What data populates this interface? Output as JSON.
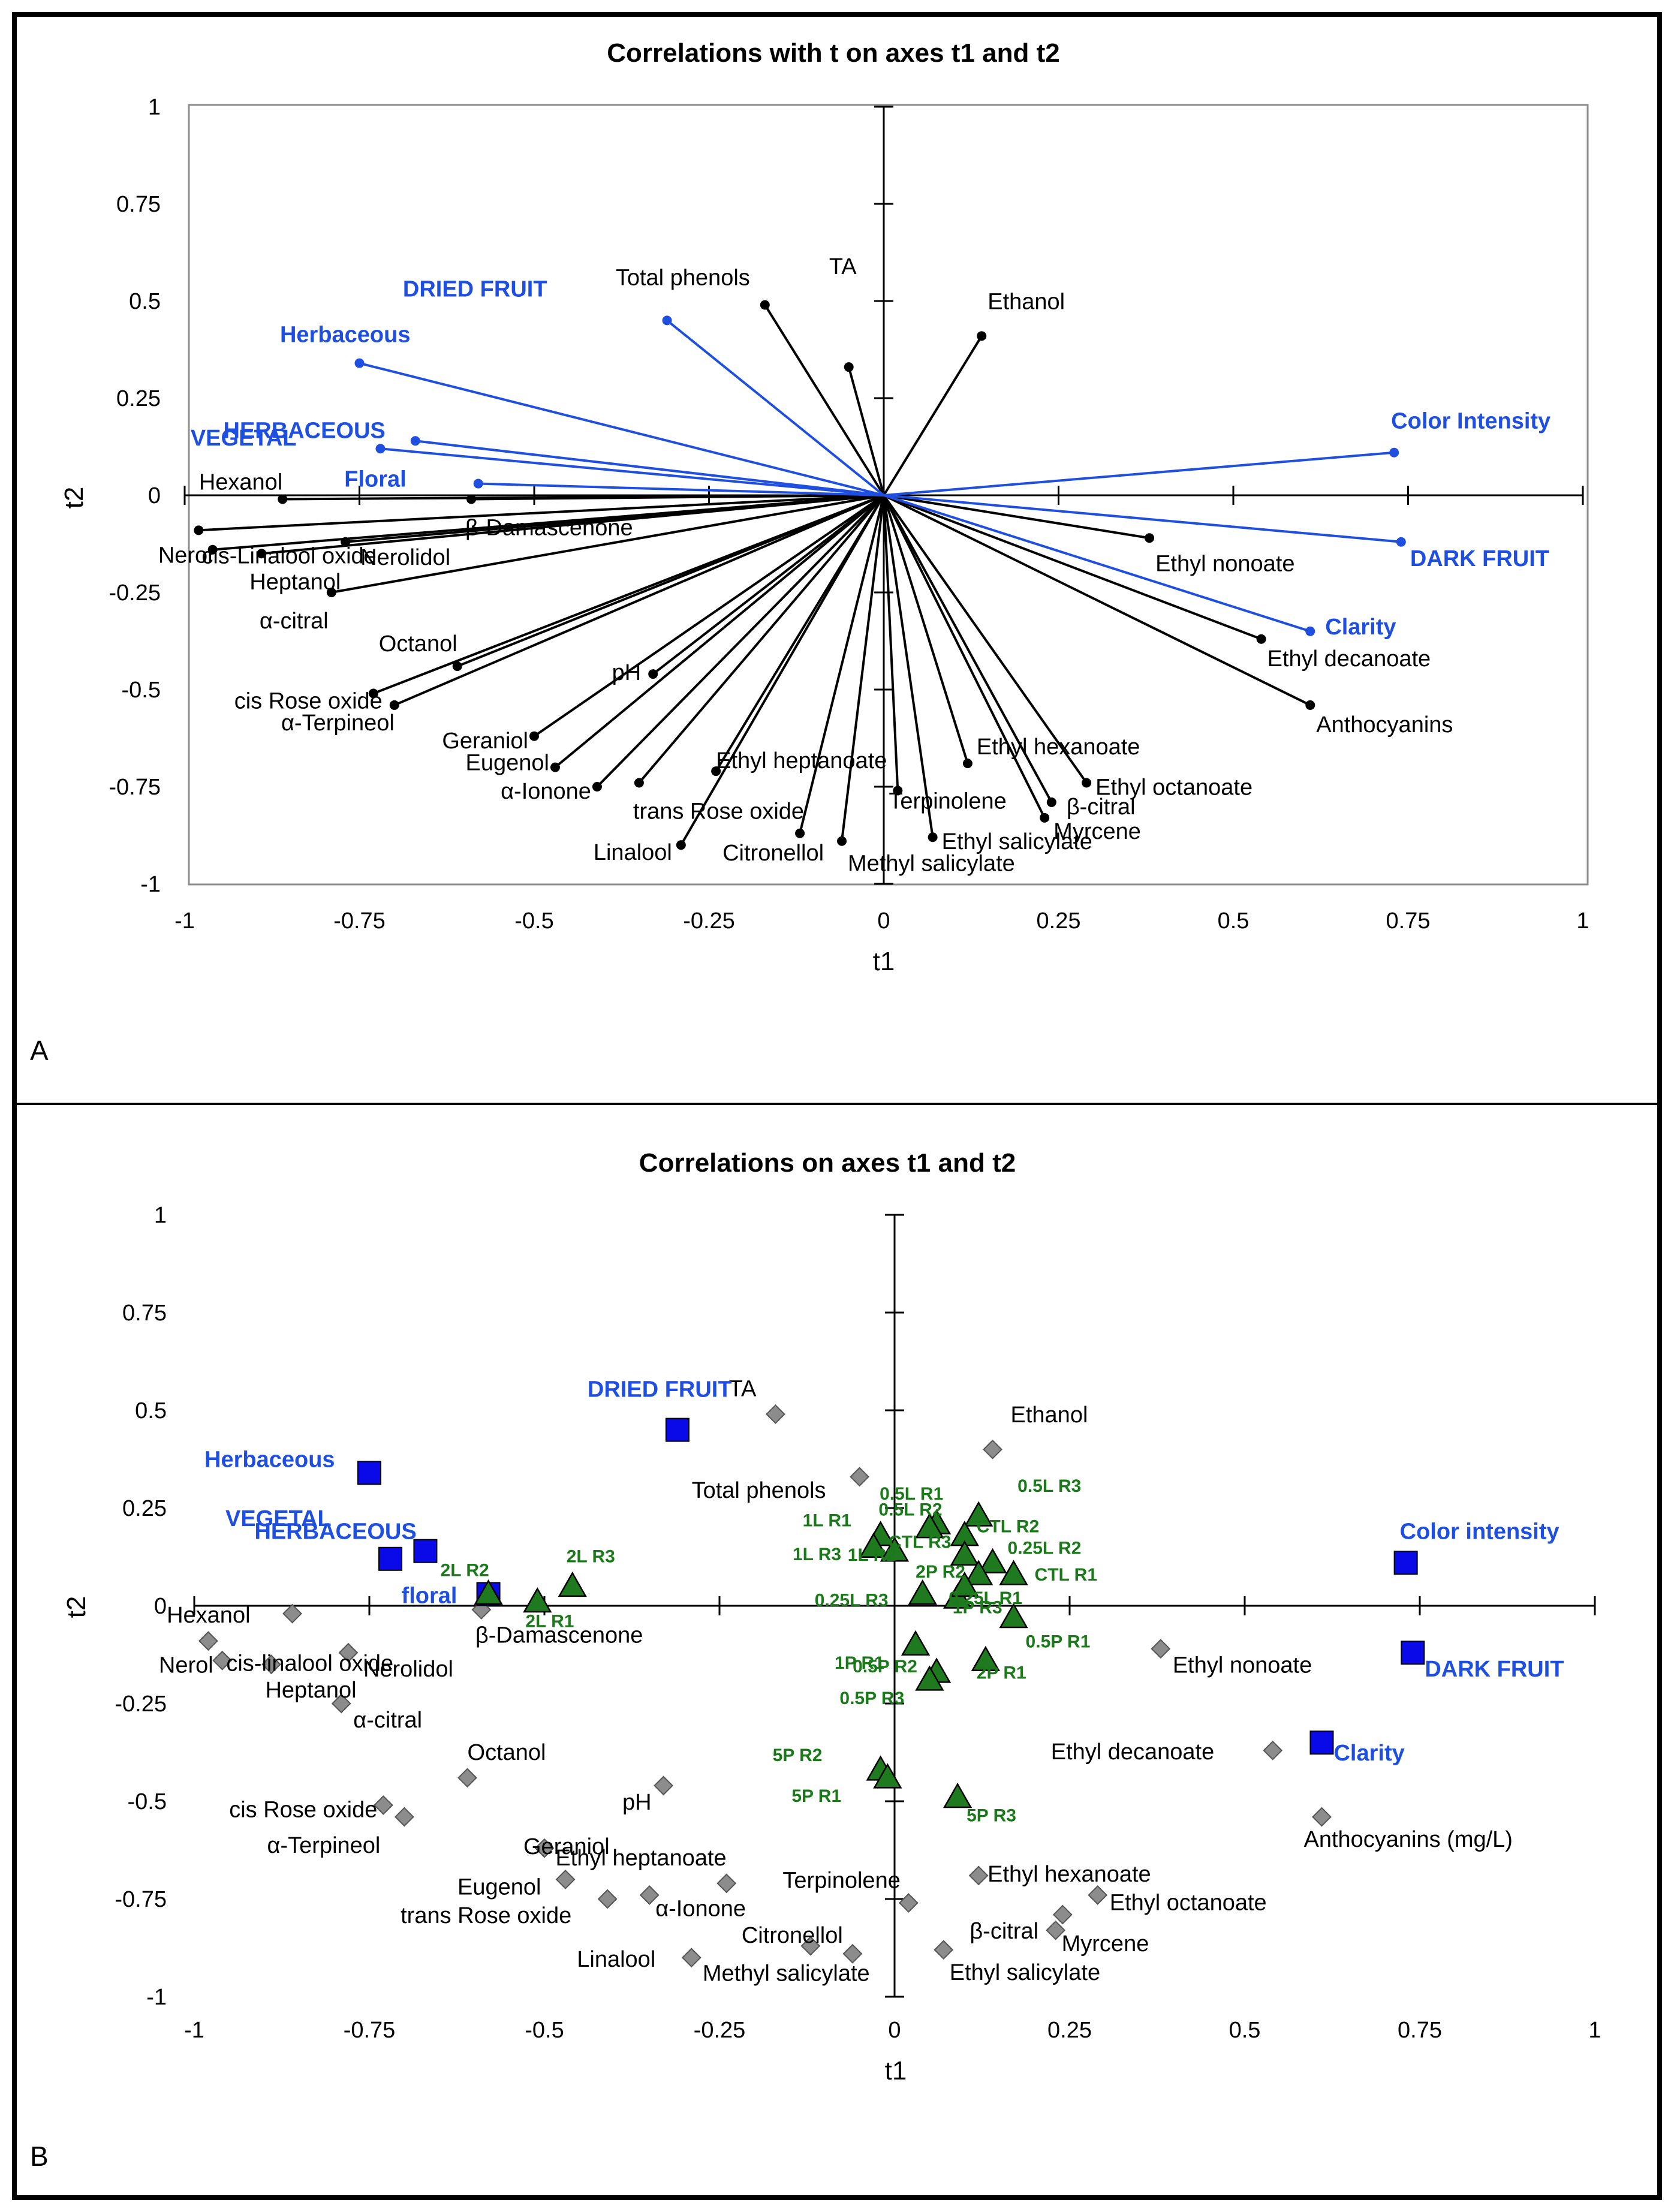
{
  "panels": {
    "A": {
      "letter": "A",
      "xlabel": "t1",
      "ylabel": "t2"
    },
    "B": {
      "letter": "B",
      "xlabel": "t1",
      "ylabel": "t2"
    }
  },
  "colors": {
    "black": "#000000",
    "blue": "#1f4fe0",
    "blue_marker": "#0a0ae8",
    "green_text": "#1a7a1a",
    "green_marker": "#1f7a1f",
    "gray_marker": "#8c8c8c"
  },
  "chart_data": [
    {
      "type": "scatter",
      "title": "Correlations with t on axes t1 and t2",
      "xlabel": "t1",
      "ylabel": "t2",
      "xlim": [
        -1,
        1
      ],
      "ylim": [
        -1,
        1
      ],
      "xticks": [
        "-1",
        "-0.75",
        "-0.5",
        "-0.25",
        "0",
        "0.25",
        "0.5",
        "0.75",
        "1"
      ],
      "yticks": [
        "1",
        "0.75",
        "0.5",
        "0.25",
        "0",
        "-0.25",
        "-0.5",
        "-0.75",
        "-1"
      ],
      "grid": false,
      "series": [
        {
          "marker": "vector",
          "color": "black",
          "points": [
            {
              "label": "Total phenols",
              "x": -0.17,
              "y": 0.49
            },
            {
              "label": "TA",
              "x": -0.05,
              "y": 0.33
            },
            {
              "label": "Ethanol",
              "x": 0.14,
              "y": 0.41
            },
            {
              "label": "Hexanol",
              "x": -0.86,
              "y": -0.01
            },
            {
              "label": "β-Damascenone",
              "x": -0.59,
              "y": -0.01
            },
            {
              "label": "cis-Linalool oxide",
              "x": -0.98,
              "y": -0.09
            },
            {
              "label": "Nerol",
              "x": -0.96,
              "y": -0.14
            },
            {
              "label": "Nerolidol",
              "x": -0.77,
              "y": -0.12
            },
            {
              "label": "Heptanol",
              "x": -0.89,
              "y": -0.15
            },
            {
              "label": "α-citral",
              "x": -0.79,
              "y": -0.25
            },
            {
              "label": "Octanol",
              "x": -0.61,
              "y": -0.44
            },
            {
              "label": "cis Rose oxide",
              "x": -0.73,
              "y": -0.51
            },
            {
              "label": "α-Terpineol",
              "x": -0.7,
              "y": -0.54
            },
            {
              "label": "pH",
              "x": -0.33,
              "y": -0.46
            },
            {
              "label": "Geraniol",
              "x": -0.5,
              "y": -0.62
            },
            {
              "label": "Eugenol",
              "x": -0.47,
              "y": -0.7
            },
            {
              "label": "α-Ionone",
              "x": -0.41,
              "y": -0.75
            },
            {
              "label": "trans Rose oxide",
              "x": -0.35,
              "y": -0.74
            },
            {
              "label": "Ethyl heptanoate",
              "x": -0.24,
              "y": -0.71
            },
            {
              "label": "Linalool",
              "x": -0.29,
              "y": -0.9
            },
            {
              "label": "Citronellol",
              "x": -0.12,
              "y": -0.87
            },
            {
              "label": "Methyl salicylate",
              "x": -0.06,
              "y": -0.89
            },
            {
              "label": "Terpinolene",
              "x": 0.02,
              "y": -0.76
            },
            {
              "label": "Ethyl salicylate",
              "x": 0.07,
              "y": -0.88
            },
            {
              "label": "Ethyl hexanoate",
              "x": 0.12,
              "y": -0.69
            },
            {
              "label": "β-citral",
              "x": 0.24,
              "y": -0.79
            },
            {
              "label": "Myrcene",
              "x": 0.23,
              "y": -0.83
            },
            {
              "label": "Ethyl octanoate",
              "x": 0.29,
              "y": -0.74
            },
            {
              "label": "Ethyl nonoate",
              "x": 0.38,
              "y": -0.11
            },
            {
              "label": "Ethyl decanoate",
              "x": 0.54,
              "y": -0.37
            },
            {
              "label": "Anthocyanins",
              "x": 0.61,
              "y": -0.54
            }
          ]
        },
        {
          "marker": "vector",
          "color": "blue",
          "points": [
            {
              "label": "DRIED FRUIT",
              "x": -0.31,
              "y": 0.45
            },
            {
              "label": "Herbaceous",
              "x": -0.75,
              "y": 0.34
            },
            {
              "label": "HERBACEOUS",
              "x": -0.67,
              "y": 0.14
            },
            {
              "label": "VEGETAL",
              "x": -0.72,
              "y": 0.12
            },
            {
              "label": "Floral",
              "x": -0.58,
              "y": 0.03
            },
            {
              "label": "Color Intensity",
              "x": 0.73,
              "y": 0.11
            },
            {
              "label": "DARK FRUIT",
              "x": 0.74,
              "y": -0.12
            },
            {
              "label": "Clarity",
              "x": 0.61,
              "y": -0.35
            }
          ]
        }
      ]
    },
    {
      "type": "scatter",
      "title": "Correlations on axes t1 and t2",
      "xlabel": "t1",
      "ylabel": "t2",
      "xlim": [
        -1,
        1
      ],
      "ylim": [
        -1,
        1
      ],
      "xticks": [
        "-1",
        "-0.75",
        "-0.5",
        "-0.25",
        "0",
        "0.25",
        "0.5",
        "0.75",
        "1"
      ],
      "yticks": [
        "1",
        "0.75",
        "0.5",
        "0.25",
        "0",
        "-0.25",
        "-0.5",
        "-0.75",
        "-1"
      ],
      "grid": false,
      "series": [
        {
          "marker": "diamond",
          "color": "gray",
          "points": [
            {
              "label": "TA",
              "x": -0.17,
              "y": 0.49
            },
            {
              "label": "Total phenols",
              "x": -0.05,
              "y": 0.33
            },
            {
              "label": "Ethanol",
              "x": 0.14,
              "y": 0.4
            },
            {
              "label": "Hexanol",
              "x": -0.86,
              "y": -0.02
            },
            {
              "label": "β-Damascenone",
              "x": -0.59,
              "y": -0.01
            },
            {
              "label": "cis-linalool oxide",
              "x": -0.98,
              "y": -0.09
            },
            {
              "label": "Nerolidol",
              "x": -0.78,
              "y": -0.12
            },
            {
              "label": "Nerol",
              "x": -0.96,
              "y": -0.14
            },
            {
              "label": "Heptanol",
              "x": -0.89,
              "y": -0.15
            },
            {
              "label": "α-citral",
              "x": -0.79,
              "y": -0.25
            },
            {
              "label": "Octanol",
              "x": -0.61,
              "y": -0.44
            },
            {
              "label": "pH",
              "x": -0.33,
              "y": -0.46
            },
            {
              "label": "cis Rose oxide",
              "x": -0.73,
              "y": -0.51
            },
            {
              "label": "α-Terpineol",
              "x": -0.7,
              "y": -0.54
            },
            {
              "label": "Geraniol",
              "x": -0.5,
              "y": -0.62
            },
            {
              "label": "Eugenol",
              "x": -0.47,
              "y": -0.7
            },
            {
              "label": "trans Rose oxide",
              "x": -0.41,
              "y": -0.75
            },
            {
              "label": "α-Ionone",
              "x": -0.35,
              "y": -0.74
            },
            {
              "label": "Ethyl heptanoate",
              "x": -0.24,
              "y": -0.71
            },
            {
              "label": "Terpinolene",
              "x": 0.02,
              "y": -0.76
            },
            {
              "label": "Citronellol",
              "x": -0.12,
              "y": -0.87
            },
            {
              "label": "Linalool",
              "x": -0.29,
              "y": -0.9
            },
            {
              "label": "Methyl salicylate",
              "x": -0.06,
              "y": -0.89
            },
            {
              "label": "Ethyl salicylate",
              "x": 0.07,
              "y": -0.88
            },
            {
              "label": "Ethyl hexanoate",
              "x": 0.12,
              "y": -0.69
            },
            {
              "label": "β-citral",
              "x": 0.24,
              "y": -0.79
            },
            {
              "label": "Myrcene",
              "x": 0.23,
              "y": -0.83
            },
            {
              "label": "Ethyl octanoate",
              "x": 0.29,
              "y": -0.74
            },
            {
              "label": "Ethyl nonoate",
              "x": 0.38,
              "y": -0.11
            },
            {
              "label": "Ethyl decanoate",
              "x": 0.54,
              "y": -0.37
            },
            {
              "label": "Anthocyanins (mg/L)",
              "x": 0.61,
              "y": -0.54
            }
          ]
        },
        {
          "marker": "square",
          "color": "blue",
          "points": [
            {
              "label": "DRIED FRUIT",
              "x": -0.31,
              "y": 0.45
            },
            {
              "label": "Herbaceous",
              "x": -0.75,
              "y": 0.34
            },
            {
              "label": "HERBACEOUS",
              "x": -0.67,
              "y": 0.14
            },
            {
              "label": "VEGETAL",
              "x": -0.72,
              "y": 0.12
            },
            {
              "label": "floral",
              "x": -0.58,
              "y": 0.03
            },
            {
              "label": "Color intensity",
              "x": 0.73,
              "y": 0.11
            },
            {
              "label": "DARK FRUIT",
              "x": 0.74,
              "y": -0.12
            },
            {
              "label": "Clarity",
              "x": 0.61,
              "y": -0.35
            }
          ]
        },
        {
          "marker": "triangle",
          "color": "green",
          "points": [
            {
              "label": "0.5L R1",
              "x": 0.06,
              "y": 0.21
            },
            {
              "label": "0.5L R3",
              "x": 0.12,
              "y": 0.23
            },
            {
              "label": "0.5L R2",
              "x": 0.05,
              "y": 0.2
            },
            {
              "label": "1L R1",
              "x": -0.02,
              "y": 0.18
            },
            {
              "label": "1L R3",
              "x": -0.03,
              "y": 0.15
            },
            {
              "label": "CTL R2",
              "x": 0.1,
              "y": 0.18
            },
            {
              "label": "CTL R3",
              "x": 0.0,
              "y": 0.14
            },
            {
              "label": "0.25L R2",
              "x": 0.14,
              "y": 0.11
            },
            {
              "label": "1L R2",
              "x": 0.1,
              "y": 0.13
            },
            {
              "label": "2P R2",
              "x": 0.12,
              "y": 0.08
            },
            {
              "label": "CTL R1",
              "x": 0.17,
              "y": 0.08
            },
            {
              "label": "0.25L R3",
              "x": 0.04,
              "y": 0.03
            },
            {
              "label": "0.25L R1",
              "x": 0.09,
              "y": 0.02
            },
            {
              "label": "1P R3",
              "x": 0.1,
              "y": 0.05
            },
            {
              "label": "0.5P R1",
              "x": 0.17,
              "y": -0.03
            },
            {
              "label": "1P R1",
              "x": 0.03,
              "y": -0.1
            },
            {
              "label": "2P R1",
              "x": 0.13,
              "y": -0.14
            },
            {
              "label": "0.5P R2",
              "x": 0.06,
              "y": -0.17
            },
            {
              "label": "0.5P R3",
              "x": 0.05,
              "y": -0.19
            },
            {
              "label": "2L R2",
              "x": -0.58,
              "y": 0.03
            },
            {
              "label": "2L R3",
              "x": -0.46,
              "y": 0.05
            },
            {
              "label": "2L R1",
              "x": -0.51,
              "y": 0.01
            },
            {
              "label": "5P R2",
              "x": -0.02,
              "y": -0.42
            },
            {
              "label": "5P R1",
              "x": -0.01,
              "y": -0.44
            },
            {
              "label": "5P R3",
              "x": 0.09,
              "y": -0.49
            }
          ]
        }
      ]
    }
  ]
}
